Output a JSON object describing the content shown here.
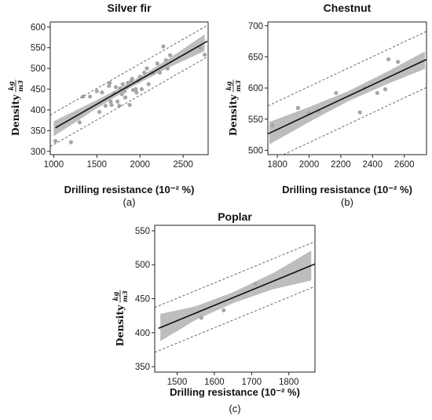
{
  "chart_data": [
    {
      "type": "scatter",
      "title": "Silver fir",
      "subtitle": "(a)",
      "xlabel": "Drilling resistance",
      "xlabel_unit": "(10⁻² %)",
      "ylabel": "Density",
      "ylabel_unit_num": "kg",
      "ylabel_unit_den": "m3",
      "xlim": [
        960,
        2790
      ],
      "ylim": [
        292,
        612
      ],
      "xticks": [
        1000,
        1500,
        2000,
        2500
      ],
      "yticks": [
        300,
        350,
        400,
        450,
        500,
        550,
        600
      ],
      "x": [
        1020,
        1200,
        1300,
        1340,
        1420,
        1500,
        1530,
        1560,
        1600,
        1640,
        1650,
        1660,
        1670,
        1700,
        1720,
        1740,
        1760,
        1770,
        1790,
        1800,
        1820,
        1830,
        1850,
        1860,
        1880,
        1900,
        1910,
        1920,
        1950,
        1960,
        1980,
        2000,
        2020,
        2050,
        2080,
        2100,
        2150,
        2200,
        2230,
        2270,
        2300,
        2320,
        2350,
        2700,
        2750
      ],
      "y": [
        325,
        322,
        370,
        432,
        432,
        445,
        395,
        442,
        410,
        458,
        465,
        420,
        412,
        440,
        455,
        420,
        410,
        452,
        438,
        462,
        445,
        430,
        455,
        465,
        412,
        470,
        475,
        448,
        450,
        442,
        470,
        480,
        450,
        490,
        500,
        462,
        488,
        512,
        490,
        553,
        520,
        500,
        532,
        550,
        533
      ],
      "fit": {
        "slope": 0.1187,
        "intercept": 235.7
      },
      "ci_halfwidth": {
        "x": [
          1000,
          1500,
          1900,
          2300,
          2750
        ],
        "h": [
          18,
          10,
          6,
          10,
          20
        ]
      },
      "pi_halfwidth": 38,
      "grid": false,
      "legend": "none"
    },
    {
      "type": "scatter",
      "title": "Chestnut",
      "subtitle": "(b)",
      "xlabel": "Drilling resistance",
      "xlabel_unit": "(10⁻² %)",
      "ylabel": "Density",
      "ylabel_unit_num": "kg",
      "ylabel_unit_den": "m3",
      "xlim": [
        1740,
        2740
      ],
      "ylim": [
        493,
        706
      ],
      "xticks": [
        1800,
        2000,
        2200,
        2400,
        2600
      ],
      "yticks": [
        500,
        550,
        600,
        650,
        700
      ],
      "x": [
        1770,
        1930,
        2000,
        2060,
        2170,
        2320,
        2350,
        2430,
        2480,
        2500,
        2560
      ],
      "y": [
        540,
        568,
        560,
        563,
        592,
        561,
        600,
        592,
        598,
        646,
        642
      ],
      "fit": {
        "slope": 0.1196,
        "intercept": 318.2
      },
      "ci_halfwidth": {
        "x": [
          1750,
          2000,
          2250,
          2500,
          2730
        ],
        "h": [
          18,
          12,
          8,
          10,
          14
        ]
      },
      "pi_halfwidth": 45,
      "grid": false,
      "legend": "none"
    },
    {
      "type": "scatter",
      "title": "Poplar",
      "subtitle": "(c)",
      "xlabel": "Drilling resistance",
      "xlabel_unit": "(10⁻² %)",
      "ylabel": "Density",
      "ylabel_unit_num": "kg",
      "ylabel_unit_den": "m3",
      "xlim": [
        1440,
        1870
      ],
      "ylim": [
        342,
        558
      ],
      "xticks": [
        1500,
        1600,
        1700,
        1800
      ],
      "yticks": [
        350,
        400,
        450,
        500,
        550
      ],
      "x": [
        1565,
        1625,
        1710
      ],
      "y": [
        422,
        433,
        472
      ],
      "fit": {
        "slope": 0.2255,
        "intercept": 79.4
      },
      "ci_halfwidth": {
        "x": [
          1455,
          1550,
          1650,
          1760,
          1860
        ],
        "h": [
          20,
          10,
          8,
          12,
          22
        ]
      },
      "pi_halfwidth": 33,
      "grid": false,
      "legend": "none"
    }
  ],
  "colors": {
    "points": "#a6a6a6",
    "band": "#bdbdbd",
    "fit": "#111111",
    "pi": "#555555"
  }
}
